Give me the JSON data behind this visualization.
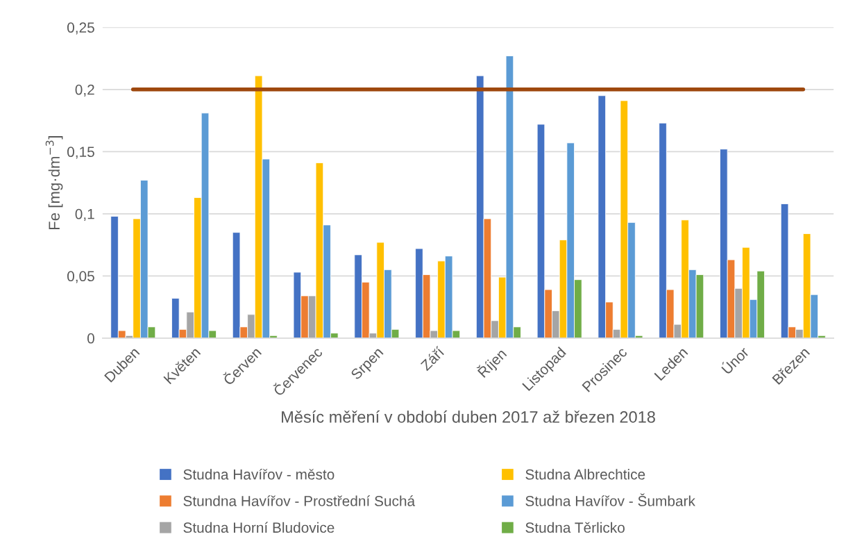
{
  "chart_data": {
    "type": "bar",
    "categories": [
      "Duben",
      "Květen",
      "Červen",
      "Červenec",
      "Srpen",
      "Září",
      "Říjen",
      "Listopad",
      "Prosinec",
      "Leden",
      "Únor",
      "Březen"
    ],
    "series": [
      {
        "name": "Studna Havířov - město",
        "color": "#4472c4",
        "values": [
          0.098,
          0.032,
          0.085,
          0.053,
          0.067,
          0.072,
          0.211,
          0.172,
          0.195,
          0.173,
          0.152,
          0.108
        ]
      },
      {
        "name": "Stundna Havířov - Prostřední Suchá",
        "color": "#ed7d31",
        "values": [
          0.006,
          0.007,
          0.009,
          0.034,
          0.045,
          0.051,
          0.096,
          0.039,
          0.029,
          0.039,
          0.063,
          0.009
        ]
      },
      {
        "name": "Studna Horní Bludovice",
        "color": "#a5a5a5",
        "values": [
          0.002,
          0.021,
          0.019,
          0.034,
          0.004,
          0.006,
          0.014,
          0.022,
          0.007,
          0.011,
          0.04,
          0.007
        ]
      },
      {
        "name": "Studna Albrechtice",
        "color": "#ffc000",
        "values": [
          0.096,
          0.113,
          0.211,
          0.141,
          0.077,
          0.062,
          0.049,
          0.079,
          0.191,
          0.095,
          0.073,
          0.084
        ]
      },
      {
        "name": "Studna Havířov - Šumbark",
        "color": "#5b9bd5",
        "values": [
          0.127,
          0.181,
          0.144,
          0.091,
          0.055,
          0.066,
          0.227,
          0.157,
          0.093,
          0.055,
          0.031,
          0.035
        ]
      },
      {
        "name": "Studna Těrlicko",
        "color": "#70ad47",
        "values": [
          0.009,
          0.006,
          0.002,
          0.004,
          0.007,
          0.006,
          0.009,
          0.047,
          0.002,
          0.051,
          0.054,
          0.002
        ]
      }
    ],
    "xlabel": "Měsíc měření v období duben 2017 až březen 2018",
    "ylabel": "Fe [mg·dm$^{−3}$]",
    "ylim": [
      0,
      0.25
    ],
    "yticks": [
      {
        "value": 0,
        "label": "0"
      },
      {
        "value": 0.05,
        "label": "0,05"
      },
      {
        "value": 0.1,
        "label": "0,1"
      },
      {
        "value": 0.15,
        "label": "0,15"
      },
      {
        "value": 0.2,
        "label": "0,2"
      },
      {
        "value": 0.25,
        "label": "0,25"
      }
    ],
    "ref_lines": [
      {
        "axis": "y",
        "value": 0.2,
        "color": "#9e480e",
        "line_style": "solid"
      }
    ],
    "grid": "y",
    "legend": "bottom"
  }
}
